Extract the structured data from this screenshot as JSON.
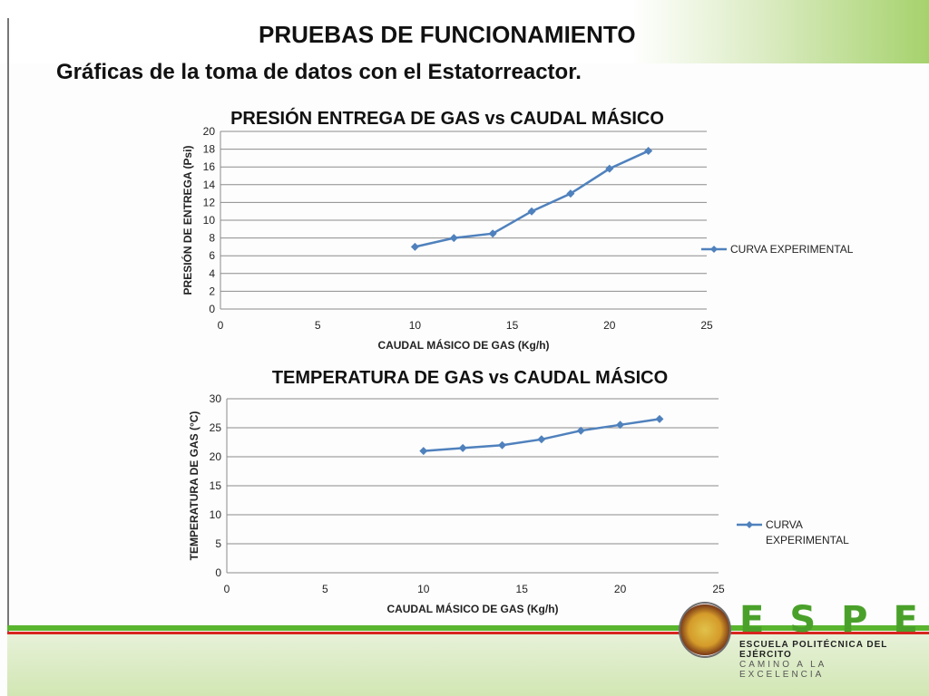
{
  "header": {
    "title": "PRUEBAS DE FUNCIONAMIENTO",
    "subtitle": "Gráficas de la toma de datos con el Estatorreactor."
  },
  "colors": {
    "series": "#4f81bd",
    "grid": "#8c8c8c",
    "accent_green": "#59b52d",
    "accent_red": "#d7261f"
  },
  "chart_data": [
    {
      "type": "line",
      "title": "PRESIÓN ENTREGA DE GAS vs CAUDAL MÁSICO",
      "xlabel": "CAUDAL MÁSICO DE GAS (Kg/h)",
      "ylabel": "PRESIÓN DE ENTREGA (Psi)",
      "xlim": [
        0,
        25
      ],
      "ylim": [
        0,
        20
      ],
      "x_ticks": [
        0,
        5,
        10,
        15,
        20,
        25
      ],
      "y_ticks": [
        0,
        2,
        4,
        6,
        8,
        10,
        12,
        14,
        16,
        18,
        20
      ],
      "grid": true,
      "legend_position": "right",
      "series": [
        {
          "name": "CURVA EXPERIMENTAL",
          "x": [
            10,
            12,
            14,
            16,
            18,
            20,
            22
          ],
          "y": [
            7.0,
            8.0,
            8.5,
            11.0,
            13.0,
            15.8,
            17.8
          ]
        }
      ]
    },
    {
      "type": "line",
      "title": "TEMPERATURA DE GAS vs CAUDAL MÁSICO",
      "xlabel": "CAUDAL MÁSICO DE GAS (Kg/h)",
      "ylabel": "TEMPERATURA DE GAS (°C)",
      "xlim": [
        0,
        25
      ],
      "ylim": [
        0,
        30
      ],
      "x_ticks": [
        0,
        5,
        10,
        15,
        20,
        25
      ],
      "y_ticks": [
        0,
        5,
        10,
        15,
        20,
        25,
        30
      ],
      "grid": true,
      "legend_position": "right",
      "series": [
        {
          "name": "CURVA EXPERIMENTAL",
          "x": [
            10,
            12,
            14,
            16,
            18,
            20,
            22
          ],
          "y": [
            21.0,
            21.5,
            22.0,
            23.0,
            24.5,
            25.5,
            26.5
          ]
        }
      ]
    }
  ],
  "logo": {
    "letters": "ESPE",
    "line1": "ESCUELA POLITÉCNICA DEL EJÉRCITO",
    "line2": "CAMINO A LA EXCELENCIA"
  }
}
